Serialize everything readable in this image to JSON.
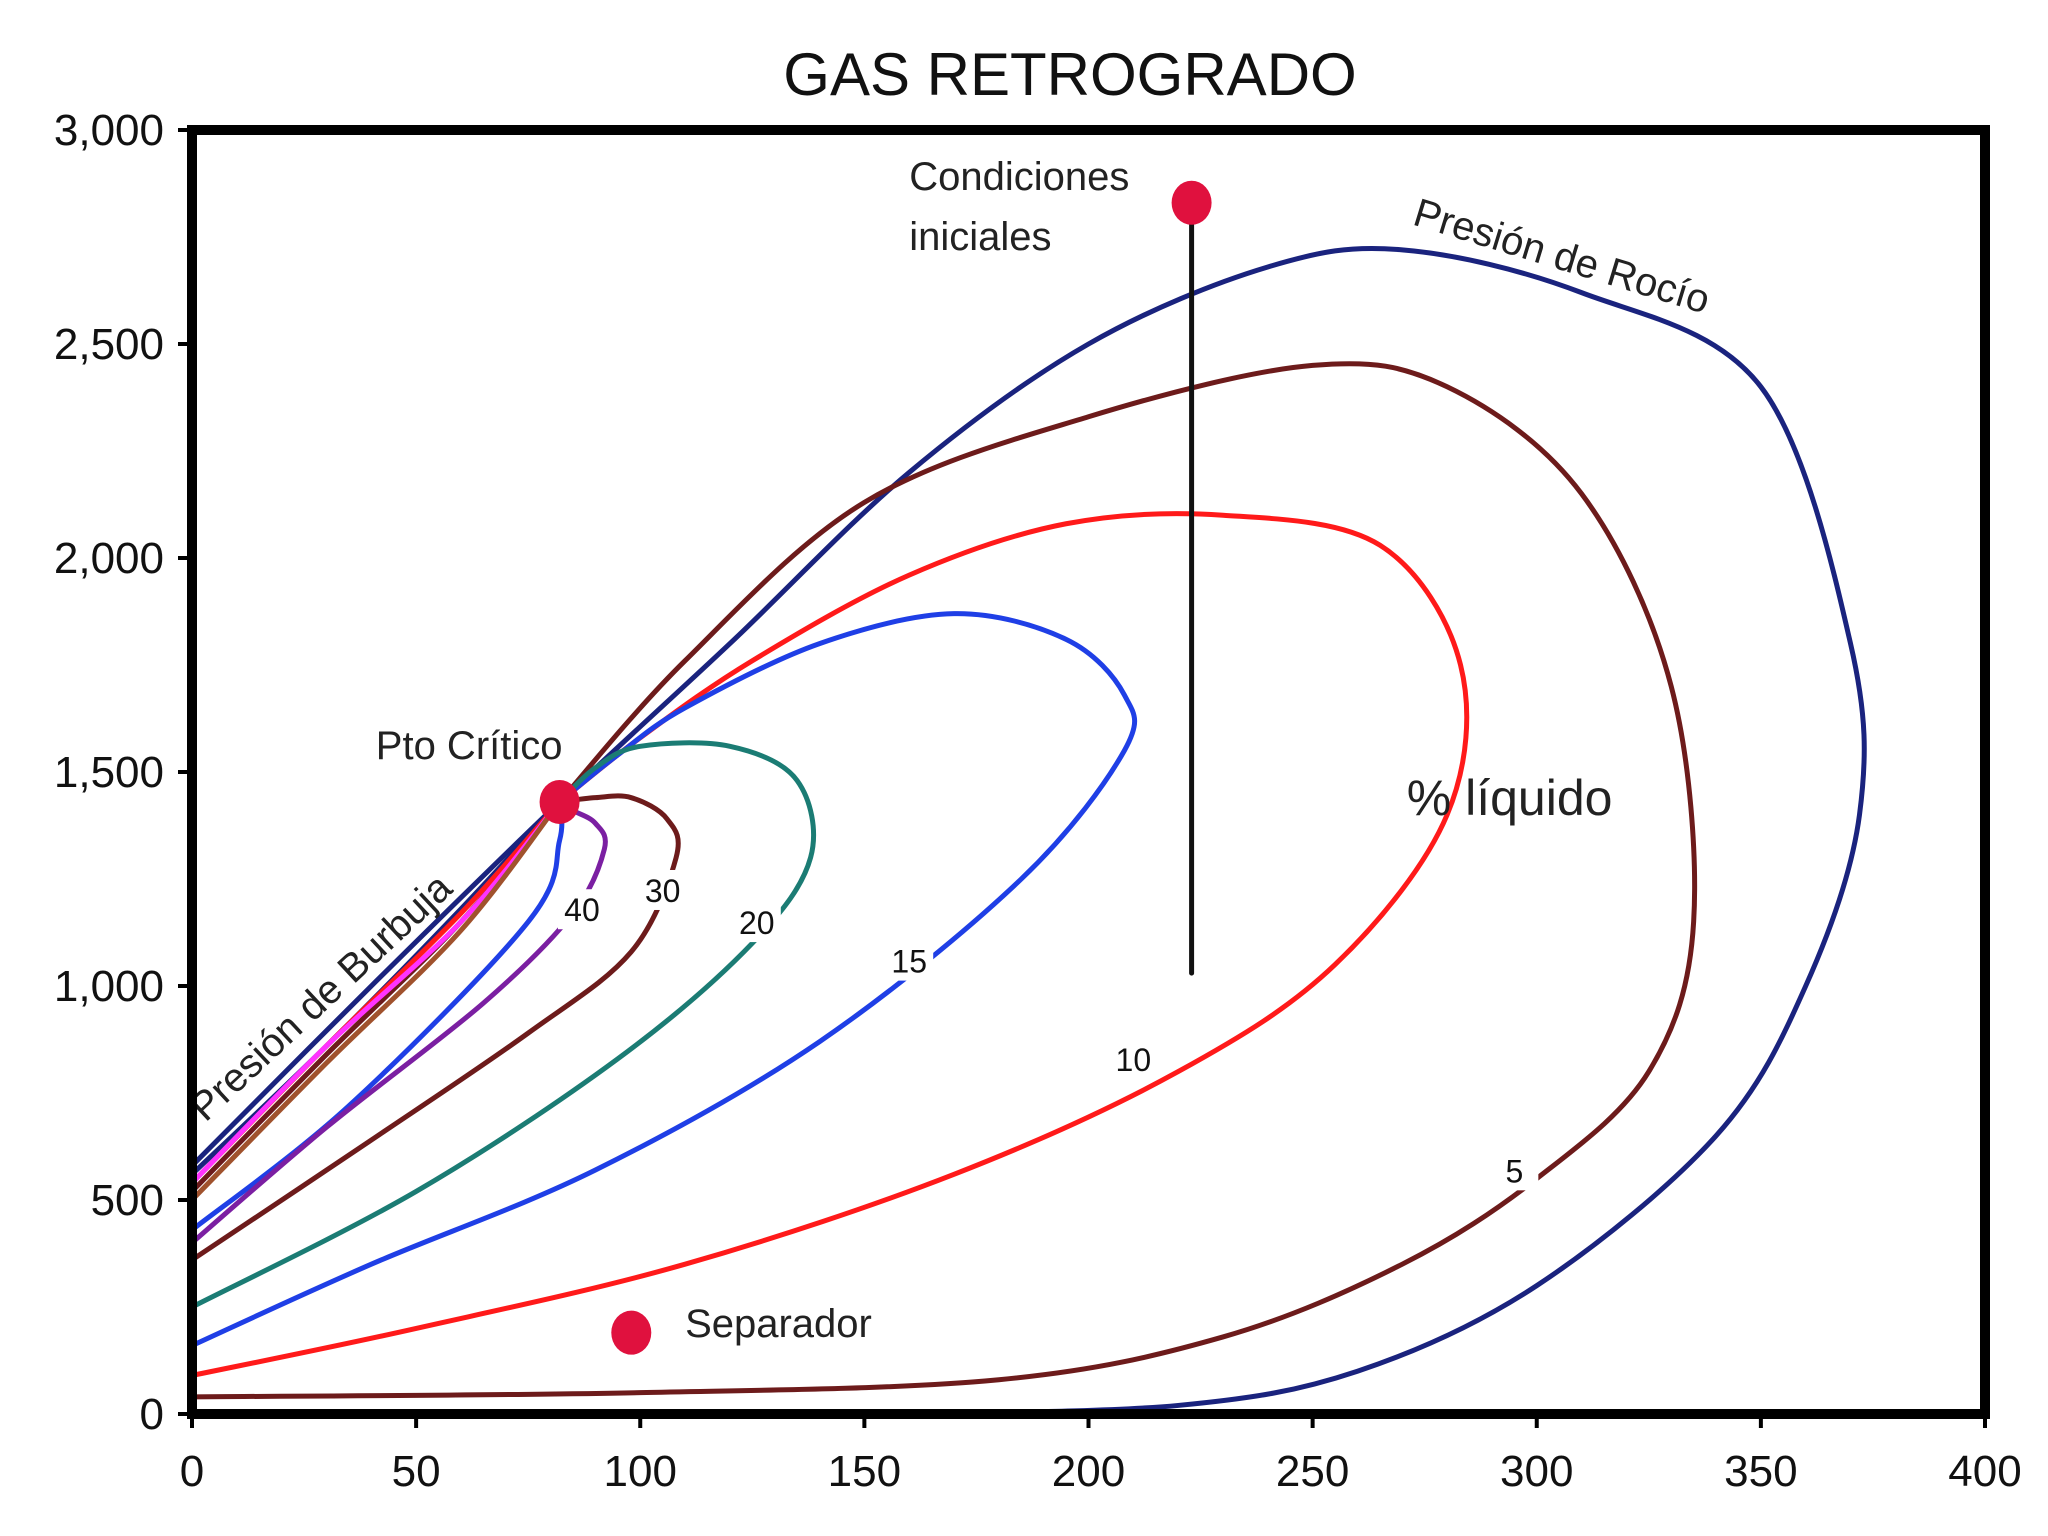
{
  "chart_data": {
    "type": "line",
    "title": "GAS RETROGRADO",
    "xlabel": "",
    "ylabel": "",
    "xlim": [
      0,
      400
    ],
    "ylim": [
      0,
      3000
    ],
    "x_ticks": [
      0,
      50,
      100,
      150,
      200,
      250,
      300,
      350,
      400
    ],
    "y_ticks": [
      0,
      500,
      1000,
      1500,
      2000,
      2500,
      3000
    ],
    "x_tick_labels": [
      "0",
      "50",
      "100",
      "150",
      "200",
      "250",
      "300",
      "350",
      "400"
    ],
    "y_tick_labels": [
      "0",
      "500",
      "1,000",
      "1,500",
      "2,000",
      "2,500",
      "3,000"
    ],
    "grid": false,
    "series": [
      {
        "name": "Presión de Rocío",
        "color": "#1a237e",
        "points": [
          [
            0,
            580
          ],
          [
            40,
            1000
          ],
          [
            82,
            1430
          ],
          [
            120,
            1800
          ],
          [
            160,
            2200
          ],
          [
            200,
            2500
          ],
          [
            240,
            2680
          ],
          [
            270,
            2720
          ],
          [
            310,
            2620
          ],
          [
            350,
            2400
          ],
          [
            370,
            1800
          ],
          [
            372,
            1400
          ],
          [
            360,
            1000
          ],
          [
            340,
            650
          ],
          [
            300,
            300
          ],
          [
            260,
            100
          ],
          [
            220,
            20
          ],
          [
            160,
            0
          ]
        ]
      },
      {
        "name": "",
        "color": "#1a237e",
        "points": [
          [
            0,
            560
          ],
          [
            30,
            860
          ],
          [
            60,
            1180
          ],
          [
            82,
            1430
          ]
        ]
      },
      {
        "name": "5",
        "color": "#6d1b1b",
        "points": [
          [
            0,
            40
          ],
          [
            100,
            50
          ],
          [
            180,
            80
          ],
          [
            230,
            180
          ],
          [
            270,
            350
          ],
          [
            300,
            550
          ],
          [
            325,
            800
          ],
          [
            335,
            1150
          ],
          [
            330,
            1700
          ],
          [
            310,
            2150
          ],
          [
            280,
            2400
          ],
          [
            250,
            2450
          ],
          [
            200,
            2330
          ],
          [
            150,
            2130
          ],
          [
            110,
            1760
          ],
          [
            82,
            1430
          ]
        ]
      },
      {
        "name": "",
        "color": "#6d1b1b",
        "points": [
          [
            0,
            520
          ],
          [
            30,
            840
          ],
          [
            60,
            1150
          ],
          [
            82,
            1430
          ]
        ]
      },
      {
        "name": "10",
        "color": "#ff1a1a",
        "points": [
          [
            0,
            90
          ],
          [
            50,
            200
          ],
          [
            110,
            350
          ],
          [
            170,
            560
          ],
          [
            220,
            800
          ],
          [
            255,
            1050
          ],
          [
            280,
            1400
          ],
          [
            283,
            1750
          ],
          [
            265,
            2030
          ],
          [
            230,
            2100
          ],
          [
            195,
            2080
          ],
          [
            160,
            1960
          ],
          [
            125,
            1760
          ],
          [
            100,
            1580
          ],
          [
            82,
            1430
          ]
        ]
      },
      {
        "name": "",
        "color": "#ff1a1a",
        "points": [
          [
            0,
            540
          ],
          [
            30,
            860
          ],
          [
            60,
            1170
          ],
          [
            82,
            1430
          ]
        ]
      },
      {
        "name": "15",
        "color": "#1f3fe6",
        "points": [
          [
            0,
            160
          ],
          [
            40,
            350
          ],
          [
            90,
            570
          ],
          [
            140,
            870
          ],
          [
            185,
            1250
          ],
          [
            208,
            1550
          ],
          [
            208,
            1680
          ],
          [
            195,
            1810
          ],
          [
            170,
            1870
          ],
          [
            140,
            1800
          ],
          [
            110,
            1650
          ],
          [
            95,
            1540
          ],
          [
            82,
            1430
          ]
        ]
      },
      {
        "name": "",
        "color": "#1f3fe6",
        "points": [
          [
            0,
            430
          ],
          [
            35,
            720
          ],
          [
            75,
            1150
          ],
          [
            82,
            1340
          ],
          [
            82,
            1430
          ]
        ]
      },
      {
        "name": "20",
        "color": "#1b7c74",
        "points": [
          [
            0,
            250
          ],
          [
            50,
            520
          ],
          [
            95,
            830
          ],
          [
            125,
            1100
          ],
          [
            138,
            1300
          ],
          [
            135,
            1480
          ],
          [
            120,
            1560
          ],
          [
            100,
            1560
          ],
          [
            90,
            1510
          ],
          [
            82,
            1430
          ]
        ]
      },
      {
        "name": "30",
        "color": "#6d1b1b",
        "points": [
          [
            0,
            360
          ],
          [
            40,
            640
          ],
          [
            75,
            890
          ],
          [
            98,
            1080
          ],
          [
            108,
            1300
          ],
          [
            106,
            1390
          ],
          [
            98,
            1440
          ],
          [
            90,
            1440
          ],
          [
            82,
            1430
          ]
        ]
      },
      {
        "name": "40",
        "color": "#7b1fa2",
        "points": [
          [
            0,
            400
          ],
          [
            30,
            670
          ],
          [
            65,
            960
          ],
          [
            85,
            1170
          ],
          [
            92,
            1320
          ],
          [
            90,
            1380
          ],
          [
            85,
            1410
          ],
          [
            82,
            1430
          ]
        ]
      },
      {
        "name": "",
        "color": "#ff33ff",
        "points": [
          [
            0,
            540
          ],
          [
            30,
            860
          ],
          [
            60,
            1150
          ],
          [
            82,
            1430
          ]
        ]
      },
      {
        "name": "",
        "color": "#a0522d",
        "points": [
          [
            0,
            500
          ],
          [
            30,
            820
          ],
          [
            60,
            1130
          ],
          [
            82,
            1430
          ]
        ]
      },
      {
        "name": "",
        "color": "#111111",
        "points": [
          [
            223,
            2830
          ],
          [
            223,
            1030
          ]
        ]
      }
    ],
    "markers": [
      {
        "label": "Pto Crítico",
        "x": 82,
        "y": 1430,
        "color": "#e0113e"
      },
      {
        "label": "Condiciones iniciales",
        "x": 223,
        "y": 2830,
        "color": "#e0113e"
      },
      {
        "label": "Separador",
        "x": 98,
        "y": 190,
        "color": "#e0113e"
      }
    ],
    "curve_labels": [
      {
        "text": "40",
        "x": 87,
        "y": 1170
      },
      {
        "text": "30",
        "x": 105,
        "y": 1215
      },
      {
        "text": "20",
        "x": 126,
        "y": 1140
      },
      {
        "text": "15",
        "x": 160,
        "y": 1050
      },
      {
        "text": "10",
        "x": 210,
        "y": 820
      },
      {
        "text": "5",
        "x": 295,
        "y": 560
      }
    ],
    "annotations": [
      {
        "text": "Presión de Burbuja",
        "x": 3,
        "y": 680,
        "rotate": -43
      },
      {
        "text": "Presión de Rocío",
        "x": 272,
        "y": 2780,
        "rotate": 17
      },
      {
        "text": "Condiciones",
        "x": 160,
        "y": 2860
      },
      {
        "text": "iniciales",
        "x": 160,
        "y": 2720
      },
      {
        "text": "Pto Crítico",
        "x": 41,
        "y": 1530
      },
      {
        "text": "Separador",
        "x": 110,
        "y": 180
      },
      {
        "text": "% líquido",
        "x": 271,
        "y": 1400
      }
    ]
  }
}
